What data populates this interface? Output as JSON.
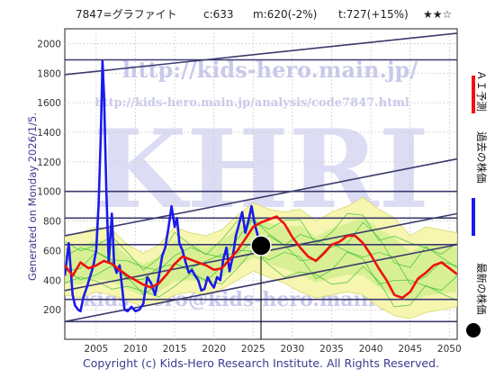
{
  "header": {
    "code_name": "7847=グラファイト",
    "current": "c:633",
    "moving": "m:620(-2%)",
    "target": "t:727(+15%)",
    "stars": "★★☆"
  },
  "side_label": "Generated on Monday 2026/1/5.",
  "copyright": "Copyright (c) Kids-Hero Research Institute. All Rights Reserved.",
  "watermark": {
    "url_1": "http://kids-hero.main.jp/",
    "url_2": "http://kids-hero.main.jp/analysis/code7847.html",
    "big": "KHRI",
    "mail": "kids-hero@kids-hero.main.jp"
  },
  "legend": [
    {
      "label": "ＡＩ予測",
      "color": "#ee1111",
      "marker": "line"
    },
    {
      "label": "過去の株価",
      "color": "#1a1aee",
      "marker": "line"
    },
    {
      "label": "最新の株価",
      "color": "#000000",
      "marker": "dot"
    }
  ],
  "colors": {
    "past_price": "#1a1aee",
    "ai_forecast": "#ee1111",
    "band_fill": "#f6f6b0",
    "band_inner": "#ccee88",
    "sim_paths": "#33bb33",
    "channel_lines": "#3a3a6e",
    "latest_dot": "#000000"
  },
  "chart_data": {
    "type": "line",
    "title": "7847=グラファイト",
    "xlim": [
      2001,
      2051
    ],
    "ylim": [
      0,
      2100
    ],
    "x_ticks": [
      2005,
      2010,
      2015,
      2020,
      2025,
      2030,
      2035,
      2040,
      2045,
      2050
    ],
    "y_ticks": [
      200,
      400,
      600,
      800,
      1000,
      1200,
      1400,
      1600,
      1800,
      2000
    ],
    "grid": true,
    "legend_position": "right",
    "latest_point": {
      "year": 2026.0,
      "value": 633
    },
    "marker_line_year": 2026.0,
    "series": [
      {
        "name": "過去の株価",
        "x": [
          2001.0,
          2001.5,
          2002.0,
          2002.3,
          2002.7,
          2003.0,
          2003.4,
          2003.8,
          2004.2,
          2004.6,
          2005.0,
          2005.3,
          2005.6,
          2005.8,
          2006.0,
          2006.3,
          2006.6,
          2007.0,
          2007.3,
          2007.6,
          2008.0,
          2008.3,
          2008.6,
          2009.0,
          2009.5,
          2010.0,
          2010.5,
          2011.0,
          2011.5,
          2012.0,
          2012.5,
          2013.0,
          2013.4,
          2013.8,
          2014.2,
          2014.6,
          2015.0,
          2015.3,
          2015.6,
          2016.0,
          2016.4,
          2016.8,
          2017.2,
          2017.6,
          2018.0,
          2018.4,
          2018.8,
          2019.2,
          2019.6,
          2020.0,
          2020.4,
          2020.8,
          2021.2,
          2021.6,
          2022.0,
          2022.4,
          2022.8,
          2023.2,
          2023.6,
          2024.0,
          2024.4,
          2024.8,
          2025.2,
          2025.6,
          2026.0
        ],
        "y": [
          430,
          650,
          300,
          230,
          200,
          190,
          290,
          350,
          420,
          490,
          600,
          900,
          1400,
          1880,
          1650,
          1000,
          520,
          850,
          500,
          450,
          500,
          350,
          200,
          190,
          220,
          190,
          200,
          240,
          420,
          380,
          300,
          430,
          560,
          620,
          750,
          900,
          760,
          820,
          650,
          600,
          520,
          450,
          470,
          430,
          400,
          330,
          340,
          420,
          380,
          350,
          420,
          400,
          540,
          620,
          460,
          560,
          700,
          780,
          860,
          720,
          800,
          900,
          780,
          700,
          633
        ]
      },
      {
        "name": "ＡＩ予測",
        "x": [
          2001.0,
          2002.0,
          2003.0,
          2004.0,
          2005.0,
          2006.0,
          2007.0,
          2008.0,
          2009.0,
          2010.0,
          2011.0,
          2012.0,
          2013.0,
          2014.0,
          2015.0,
          2016.0,
          2017.0,
          2018.0,
          2019.0,
          2020.0,
          2021.0,
          2022.0,
          2023.0,
          2024.0,
          2025.0,
          2026.0,
          2027.0,
          2028.0,
          2029.0,
          2030.0,
          2031.0,
          2032.0,
          2033.0,
          2034.0,
          2035.0,
          2036.0,
          2037.0,
          2038.0,
          2039.0,
          2040.0,
          2041.0,
          2042.0,
          2043.0,
          2044.0,
          2045.0,
          2046.0,
          2047.0,
          2048.0,
          2049.0,
          2050.0,
          2051.0
        ],
        "y": [
          500,
          430,
          520,
          480,
          500,
          530,
          510,
          470,
          430,
          400,
          370,
          350,
          380,
          440,
          510,
          560,
          540,
          520,
          500,
          470,
          480,
          540,
          600,
          680,
          760,
          790,
          810,
          830,
          780,
          690,
          620,
          560,
          530,
          580,
          640,
          660,
          700,
          700,
          650,
          570,
          480,
          400,
          300,
          280,
          320,
          410,
          450,
          500,
          520,
          480,
          440
        ]
      }
    ],
    "band": {
      "x": [
        2001,
        2003,
        2005,
        2007,
        2009,
        2011,
        2013,
        2015,
        2017,
        2019,
        2021,
        2023,
        2025,
        2027,
        2029,
        2031,
        2033,
        2035,
        2037,
        2039,
        2041,
        2043,
        2045,
        2047,
        2049,
        2051
      ],
      "upper": [
        700,
        720,
        760,
        740,
        640,
        580,
        640,
        760,
        720,
        700,
        740,
        840,
        920,
        880,
        860,
        880,
        800,
        860,
        900,
        960,
        880,
        820,
        700,
        760,
        740,
        720
      ],
      "lower": [
        300,
        280,
        320,
        300,
        260,
        220,
        240,
        300,
        320,
        300,
        340,
        400,
        460,
        420,
        380,
        320,
        280,
        300,
        320,
        300,
        220,
        160,
        140,
        180,
        200,
        220
      ]
    },
    "channel_lines": [
      {
        "x": [
          2001,
          2051
        ],
        "y": [
          1790,
          2070
        ]
      },
      {
        "x": [
          2001,
          2051
        ],
        "y": [
          1890,
          1890
        ]
      },
      {
        "x": [
          2001,
          2051
        ],
        "y": [
          1000,
          1000
        ]
      },
      {
        "x": [
          2001,
          2051
        ],
        "y": [
          820,
          820
        ]
      },
      {
        "x": [
          2001,
          2051
        ],
        "y": [
          640,
          640
        ]
      },
      {
        "x": [
          2001,
          2051
        ],
        "y": [
          270,
          270
        ]
      },
      {
        "x": [
          2001,
          2051
        ],
        "y": [
          120,
          120
        ]
      },
      {
        "x": [
          2001,
          2051
        ],
        "y": [
          330,
          850
        ]
      },
      {
        "x": [
          2001,
          2051
        ],
        "y": [
          120,
          640
        ]
      },
      {
        "x": [
          2001,
          2051
        ],
        "y": [
          700,
          1220
        ]
      }
    ]
  }
}
